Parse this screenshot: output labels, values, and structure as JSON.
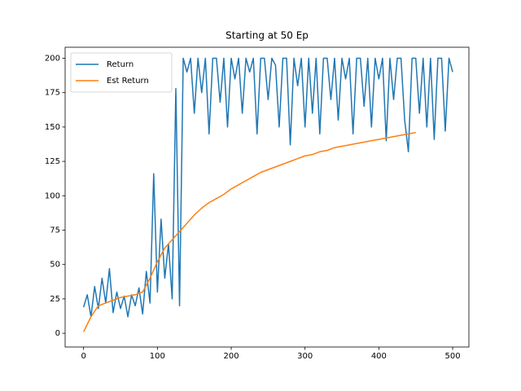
{
  "chart_data": {
    "type": "line",
    "title": "Starting at 50 Ep",
    "xlim": [
      -25,
      522
    ],
    "ylim": [
      -10,
      208
    ],
    "xticks": [
      0,
      100,
      200,
      300,
      400,
      500
    ],
    "yticks": [
      0,
      25,
      50,
      75,
      100,
      125,
      150,
      175,
      200
    ],
    "legend": "upper left",
    "series": [
      {
        "name": "Return",
        "color": "#1f77b4",
        "x": [
          0,
          5,
          10,
          15,
          20,
          25,
          30,
          35,
          40,
          45,
          50,
          55,
          60,
          65,
          70,
          75,
          80,
          85,
          90,
          95,
          100,
          105,
          110,
          115,
          120,
          125,
          130,
          135,
          140,
          145,
          150,
          155,
          160,
          165,
          170,
          175,
          180,
          185,
          190,
          195,
          200,
          205,
          210,
          215,
          220,
          225,
          230,
          235,
          240,
          245,
          250,
          255,
          260,
          265,
          270,
          275,
          280,
          285,
          290,
          295,
          300,
          305,
          310,
          315,
          320,
          325,
          330,
          335,
          340,
          345,
          350,
          355,
          360,
          365,
          370,
          375,
          380,
          385,
          390,
          395,
          400,
          405,
          410,
          415,
          420,
          425,
          430,
          435,
          440,
          445,
          450,
          455,
          460,
          465,
          470,
          475,
          480,
          485,
          490,
          495,
          500
        ],
        "values": [
          19,
          28,
          12,
          34,
          18,
          40,
          22,
          47,
          15,
          30,
          18,
          27,
          12,
          28,
          20,
          33,
          14,
          45,
          22,
          116,
          30,
          83,
          40,
          65,
          25,
          178,
          20,
          200,
          190,
          200,
          160,
          200,
          175,
          200,
          145,
          200,
          200,
          168,
          200,
          150,
          200,
          185,
          200,
          160,
          200,
          190,
          200,
          145,
          200,
          200,
          170,
          200,
          195,
          150,
          200,
          200,
          137,
          200,
          180,
          200,
          150,
          200,
          160,
          200,
          145,
          200,
          200,
          170,
          200,
          155,
          200,
          185,
          200,
          145,
          200,
          200,
          165,
          200,
          150,
          200,
          185,
          200,
          140,
          200,
          170,
          200,
          200,
          155,
          132,
          200,
          200,
          160,
          200,
          150,
          200,
          141,
          200,
          200,
          147,
          200,
          190
        ]
      },
      {
        "name": "Est Return",
        "color": "#ff7f0e",
        "x": [
          0,
          10,
          20,
          30,
          40,
          50,
          60,
          70,
          80,
          90,
          100,
          110,
          120,
          130,
          140,
          150,
          160,
          170,
          180,
          190,
          200,
          210,
          220,
          230,
          240,
          250,
          260,
          270,
          280,
          290,
          300,
          310,
          320,
          330,
          340,
          350,
          360,
          370,
          380,
          390,
          400,
          410,
          420,
          430,
          440,
          450
        ],
        "values": [
          1,
          12,
          20,
          22,
          24,
          26,
          27,
          28,
          30,
          40,
          52,
          62,
          68,
          74,
          80,
          86,
          91,
          95,
          98,
          101,
          105,
          108,
          111,
          114,
          117,
          119,
          121,
          123,
          125,
          127,
          129,
          130,
          132,
          133,
          135,
          136,
          137,
          138,
          139,
          140,
          141,
          142,
          143,
          144,
          145,
          146
        ]
      }
    ]
  }
}
